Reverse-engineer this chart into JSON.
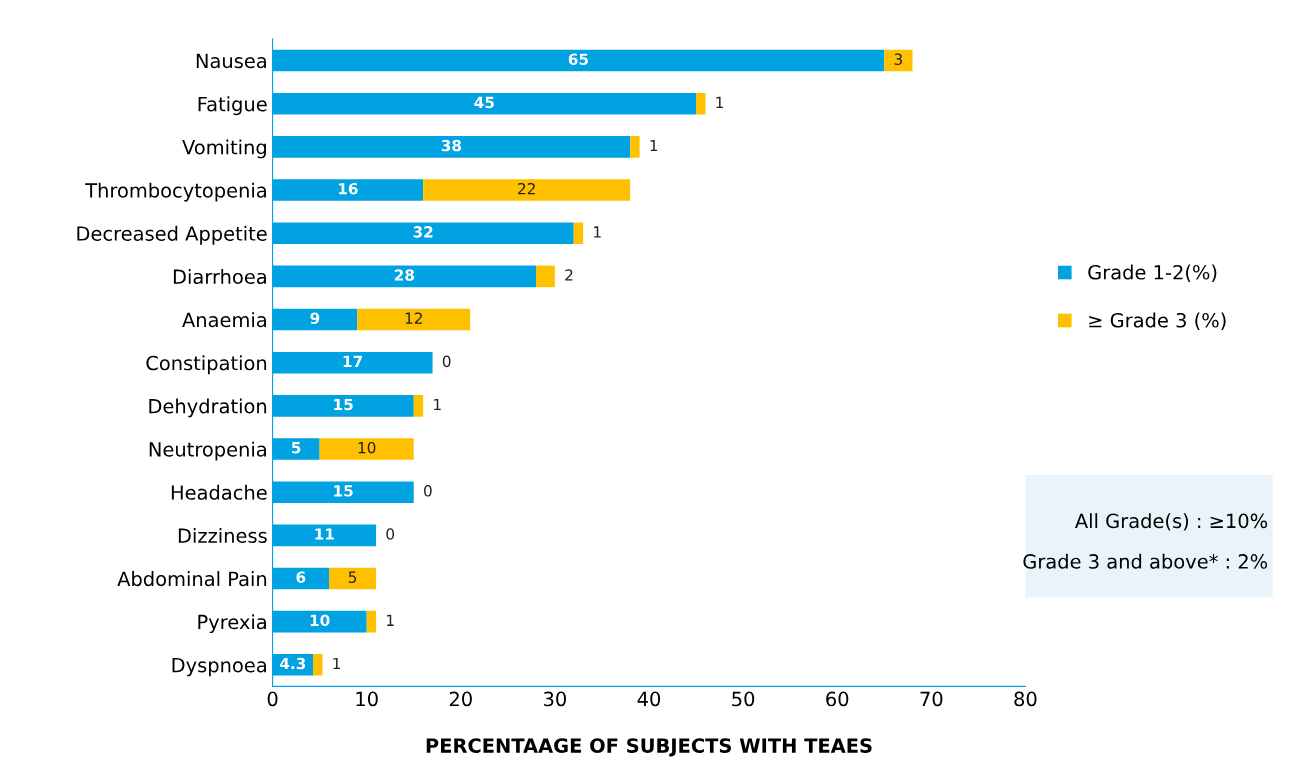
{
  "chart_data": {
    "type": "bar",
    "orientation": "horizontal",
    "stacked": true,
    "xlabel": "PERCENTAAGE OF SUBJECTS WITH TEAES",
    "categories": [
      "Nausea",
      "Fatigue",
      "Vomiting",
      "Thrombocytopenia",
      "Decreased Appetite",
      "Diarrhoea",
      "Anaemia",
      "Constipation",
      "Dehydration",
      "Neutropenia",
      "Headache",
      "Dizziness",
      "Abdominal Pain",
      "Pyrexia",
      "Dyspnoea"
    ],
    "series": [
      {
        "name": "Grade 1-2(%)",
        "color": "#00a2e1",
        "values": [
          65,
          45,
          38,
          16,
          32,
          28,
          9,
          17,
          15,
          5,
          15,
          11,
          6,
          10,
          4.3
        ]
      },
      {
        "name": "≥ Grade 3 (%)",
        "color": "#ffc000",
        "values": [
          3,
          1,
          1,
          22,
          1,
          2,
          12,
          0,
          1,
          10,
          0,
          0,
          5,
          1,
          1
        ]
      }
    ],
    "xlim": [
      0,
      80
    ],
    "xticks": [
      0,
      10,
      20,
      30,
      40,
      50,
      60,
      70,
      80
    ],
    "data_labels": true,
    "grid": false,
    "legend": "right",
    "annotations": [
      "All Grade(s) : ≥10%",
      "Grade 3 and above* : 2%"
    ]
  }
}
